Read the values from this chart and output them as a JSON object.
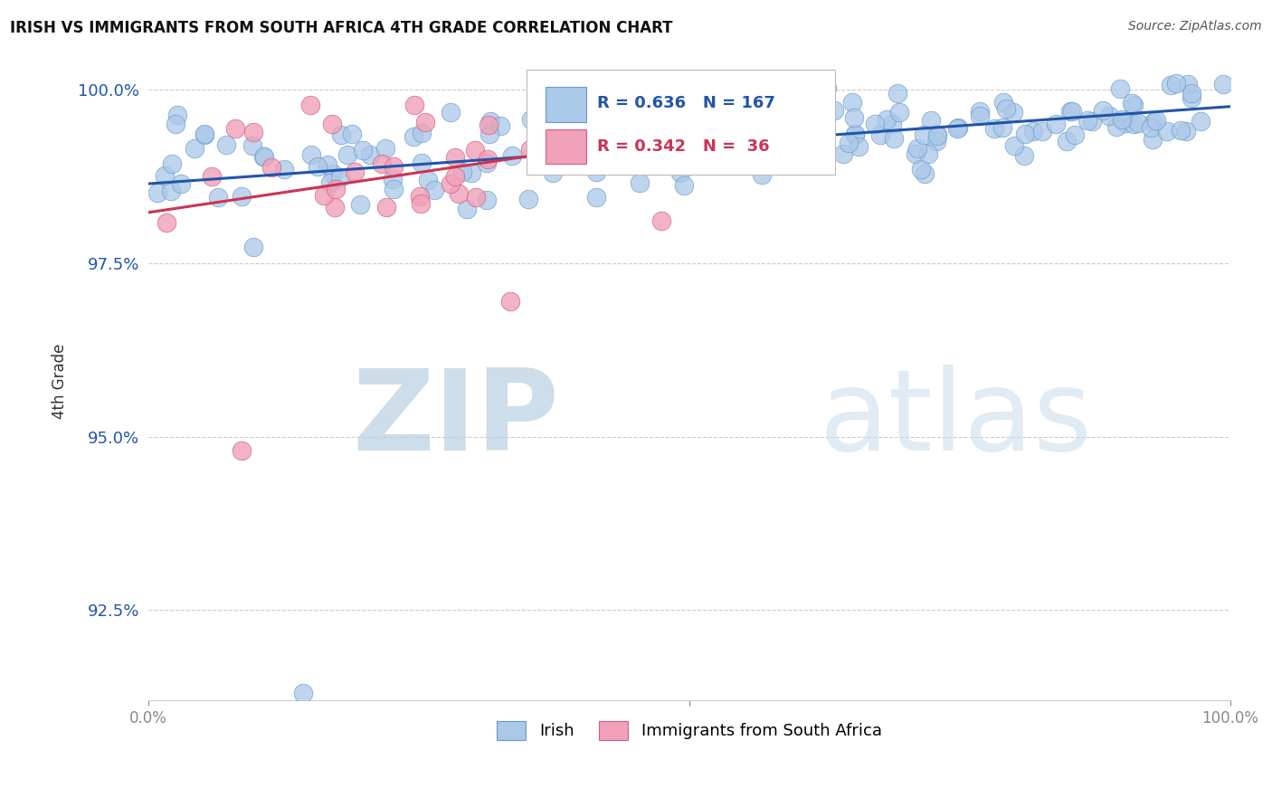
{
  "title": "IRISH VS IMMIGRANTS FROM SOUTH AFRICA 4TH GRADE CORRELATION CHART",
  "source_text": "Source: ZipAtlas.com",
  "ylabel": "4th Grade",
  "xlim": [
    0.0,
    1.0
  ],
  "ylim": [
    0.912,
    1.004
  ],
  "yticks": [
    0.925,
    0.95,
    0.975,
    1.0
  ],
  "ytick_labels": [
    "92.5%",
    "95.0%",
    "97.5%",
    "100.0%"
  ],
  "blue_R": 0.636,
  "blue_N": 167,
  "pink_R": 0.342,
  "pink_N": 36,
  "blue_fill": "#aac8e8",
  "blue_edge": "#6699cc",
  "pink_fill": "#f0a0b8",
  "pink_edge": "#d06080",
  "blue_line_color": "#2255aa",
  "pink_line_color": "#cc3355",
  "grid_color": "#cccccc",
  "watermark_zip": "ZIP",
  "watermark_atlas": "atlas",
  "watermark_color": "#c5d8ee",
  "legend_label_blue": "Irish",
  "legend_label_pink": "Immigrants from South Africa"
}
